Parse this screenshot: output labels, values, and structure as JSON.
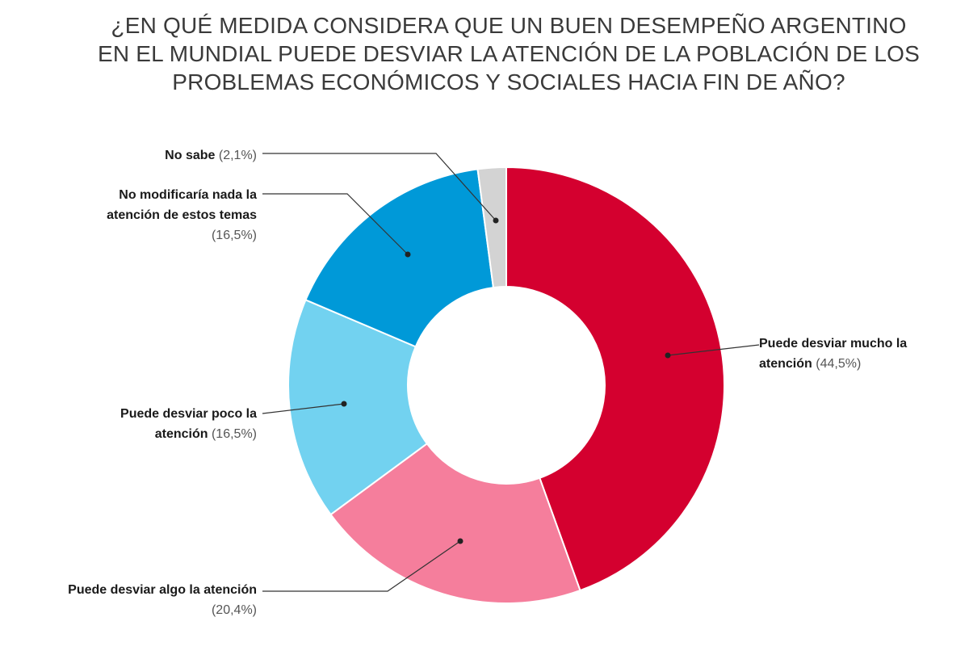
{
  "chart_data": {
    "type": "pie",
    "variant": "donut",
    "title_lines": [
      "¿EN QUÉ MEDIDA CONSIDERA QUE UN BUEN DESEMPEÑO ARGENTINO",
      "EN EL MUNDIAL PUEDE DESVIAR LA ATENCIÓN DE LA POBLACIÓN DE LOS",
      "PROBLEMAS ECONÓMICOS Y SOCIALES HACIA FIN DE AÑO?"
    ],
    "slices": [
      {
        "label": "Puede desviar mucho la atención",
        "value": 44.5,
        "pct_text": "(44,5%)",
        "color": "#d4002f"
      },
      {
        "label": "Puede desviar algo la atención",
        "value": 20.4,
        "pct_text": "(20,4%)",
        "color": "#f57e9c"
      },
      {
        "label": "Puede desviar poco la atención",
        "value": 16.5,
        "pct_text": "(16,5%)",
        "color": "#72d2f0"
      },
      {
        "label": "No modificaría nada la atención de estos temas",
        "value": 16.5,
        "pct_text": "(16,5%)",
        "color": "#0099d8"
      },
      {
        "label": "No sabe",
        "value": 2.1,
        "pct_text": "(2,1%)",
        "color": "#d3d3d3"
      }
    ],
    "start": "top",
    "direction": "clockwise"
  }
}
